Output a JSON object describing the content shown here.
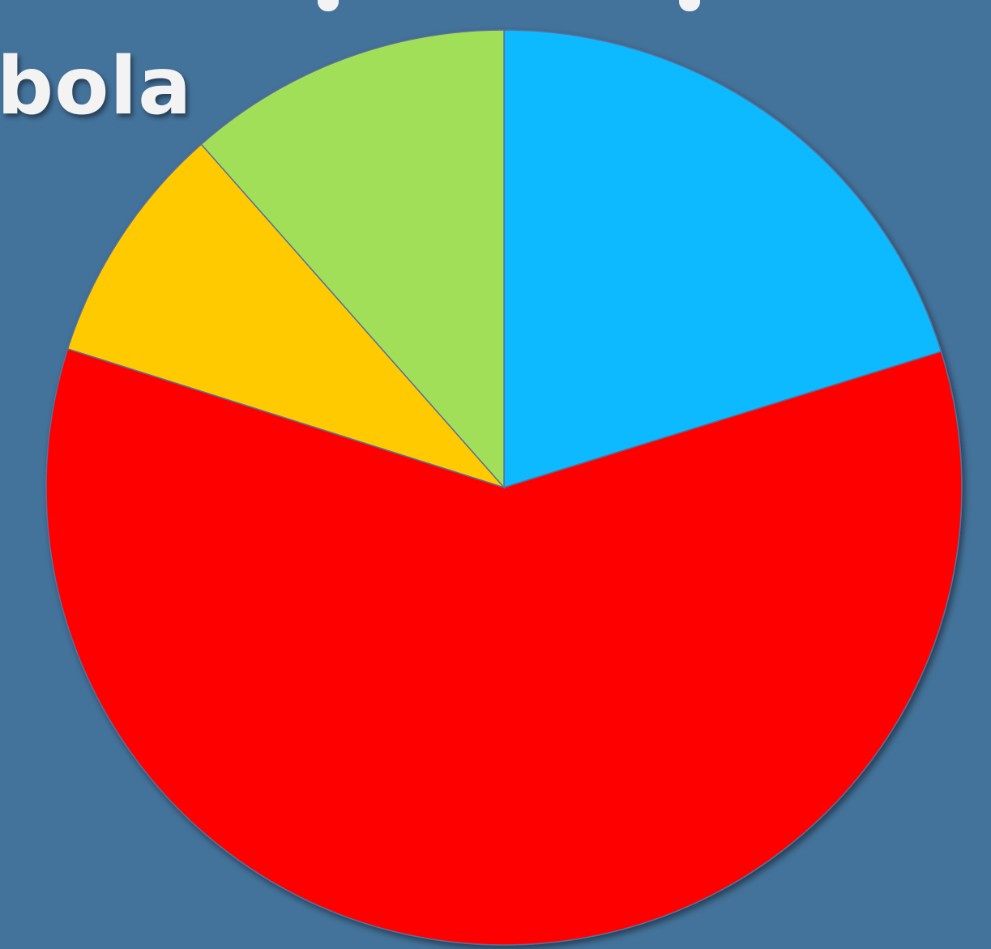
{
  "title_fragment": "bola",
  "chart_data": {
    "type": "pie",
    "start_angle_deg": -90,
    "direction": "clockwise",
    "slices": [
      {
        "value": 20.2,
        "color": "#0abaff"
      },
      {
        "value": 59.7,
        "color": "#ff0505"
      },
      {
        "value": 8.6,
        "color": "#ffcb05"
      },
      {
        "value": 11.5,
        "color": "#a2df58"
      }
    ]
  }
}
